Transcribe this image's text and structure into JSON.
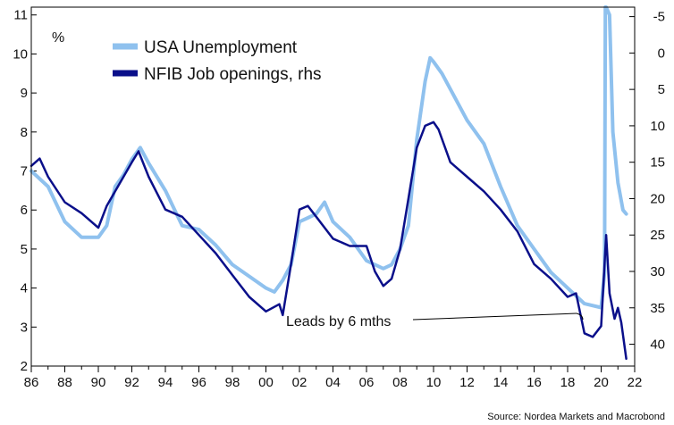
{
  "chart_data": {
    "type": "line",
    "title": "",
    "ylabel": "%",
    "xlim": [
      1986,
      2022
    ],
    "ylim_left": [
      2,
      11.2
    ],
    "ylim_right": [
      -6.3,
      43
    ],
    "right_axis_inverted": true,
    "x_ticks": [
      86,
      88,
      90,
      92,
      94,
      96,
      98,
      0,
      2,
      4,
      6,
      8,
      10,
      12,
      14,
      16,
      18,
      20,
      22
    ],
    "x_tick_labels": [
      "86",
      "88",
      "90",
      "92",
      "94",
      "96",
      "98",
      "00",
      "02",
      "04",
      "06",
      "08",
      "10",
      "12",
      "14",
      "16",
      "18",
      "20",
      "22"
    ],
    "y_left_ticks": [
      2,
      3,
      4,
      5,
      6,
      7,
      8,
      9,
      10,
      11
    ],
    "y_right_ticks": [
      -5,
      0,
      5,
      10,
      15,
      20,
      25,
      30,
      35,
      40
    ],
    "grid": false,
    "legend_position": "top-left",
    "series": [
      {
        "name": "USA Unemployment",
        "axis": "left",
        "color": "#8fc1ee",
        "x": [
          1986.0,
          1987.0,
          1988.0,
          1989.0,
          1990.0,
          1990.5,
          1991.0,
          1991.5,
          1992.0,
          1992.5,
          1993.0,
          1994.0,
          1995.0,
          1996.0,
          1997.0,
          1998.0,
          1999.0,
          2000.0,
          2000.5,
          2001.0,
          2001.5,
          2002.0,
          2002.5,
          2003.0,
          2003.5,
          2004.0,
          2005.0,
          2006.0,
          2007.0,
          2007.5,
          2008.0,
          2008.5,
          2009.0,
          2009.5,
          2009.8,
          2010.0,
          2010.5,
          2011.0,
          2012.0,
          2013.0,
          2014.0,
          2015.0,
          2016.0,
          2017.0,
          2018.0,
          2019.0,
          2020.0,
          2020.2,
          2020.25,
          2020.3,
          2020.5,
          2020.7,
          2021.0,
          2021.3,
          2021.5
        ],
        "values": [
          7.0,
          6.6,
          5.7,
          5.3,
          5.3,
          5.6,
          6.6,
          6.9,
          7.3,
          7.6,
          7.2,
          6.5,
          5.6,
          5.5,
          5.1,
          4.6,
          4.3,
          4.0,
          3.9,
          4.2,
          4.6,
          5.7,
          5.8,
          5.9,
          6.2,
          5.7,
          5.3,
          4.7,
          4.5,
          4.6,
          5.0,
          5.6,
          7.8,
          9.3,
          9.9,
          9.8,
          9.5,
          9.1,
          8.3,
          7.7,
          6.6,
          5.6,
          5.0,
          4.4,
          4.0,
          3.6,
          3.5,
          4.4,
          11.2,
          11.2,
          11.0,
          8.0,
          6.7,
          6.0,
          5.9
        ]
      },
      {
        "name": "NFIB Job openings, rhs",
        "axis": "right",
        "color": "#0a0f8a",
        "x": [
          1986.0,
          1986.5,
          1987.0,
          1988.0,
          1989.0,
          1990.0,
          1990.5,
          1991.0,
          1992.0,
          1992.4,
          1993.0,
          1994.0,
          1995.0,
          1996.0,
          1997.0,
          1998.0,
          1999.0,
          2000.0,
          2000.8,
          2001.0,
          2001.5,
          2002.0,
          2002.5,
          2003.0,
          2004.0,
          2005.0,
          2006.0,
          2006.5,
          2007.0,
          2007.5,
          2008.0,
          2008.5,
          2009.0,
          2009.5,
          2010.0,
          2010.3,
          2011.0,
          2012.0,
          2013.0,
          2014.0,
          2015.0,
          2016.0,
          2017.0,
          2018.0,
          2018.5,
          2019.0,
          2019.5,
          2020.0,
          2020.3,
          2020.5,
          2020.8,
          2021.0,
          2021.2,
          2021.5
        ],
        "values": [
          15.5,
          14.5,
          17.0,
          20.5,
          22.0,
          24.0,
          21.0,
          19.0,
          15.0,
          13.5,
          17.0,
          21.5,
          22.5,
          25.0,
          27.5,
          30.5,
          33.5,
          35.5,
          34.5,
          36.0,
          29.0,
          21.5,
          21.0,
          22.5,
          25.5,
          26.5,
          26.5,
          30.0,
          32.0,
          31.0,
          27.0,
          20.0,
          13.0,
          10.0,
          9.5,
          10.5,
          15.0,
          17.0,
          19.0,
          21.5,
          24.5,
          29.0,
          31.0,
          33.5,
          33.0,
          38.5,
          39.0,
          37.5,
          25.0,
          33.0,
          36.5,
          35.0,
          37.0,
          42.0
        ]
      }
    ],
    "annotations": [
      "Leads by 6 mths"
    ]
  },
  "legend": {
    "series1": "USA Unemployment",
    "series2": "NFIB Job openings, rhs"
  },
  "unit_label": "%",
  "annotation_text": "Leads by 6 mths",
  "source": "Source: Nordea Markets and Macrobond"
}
